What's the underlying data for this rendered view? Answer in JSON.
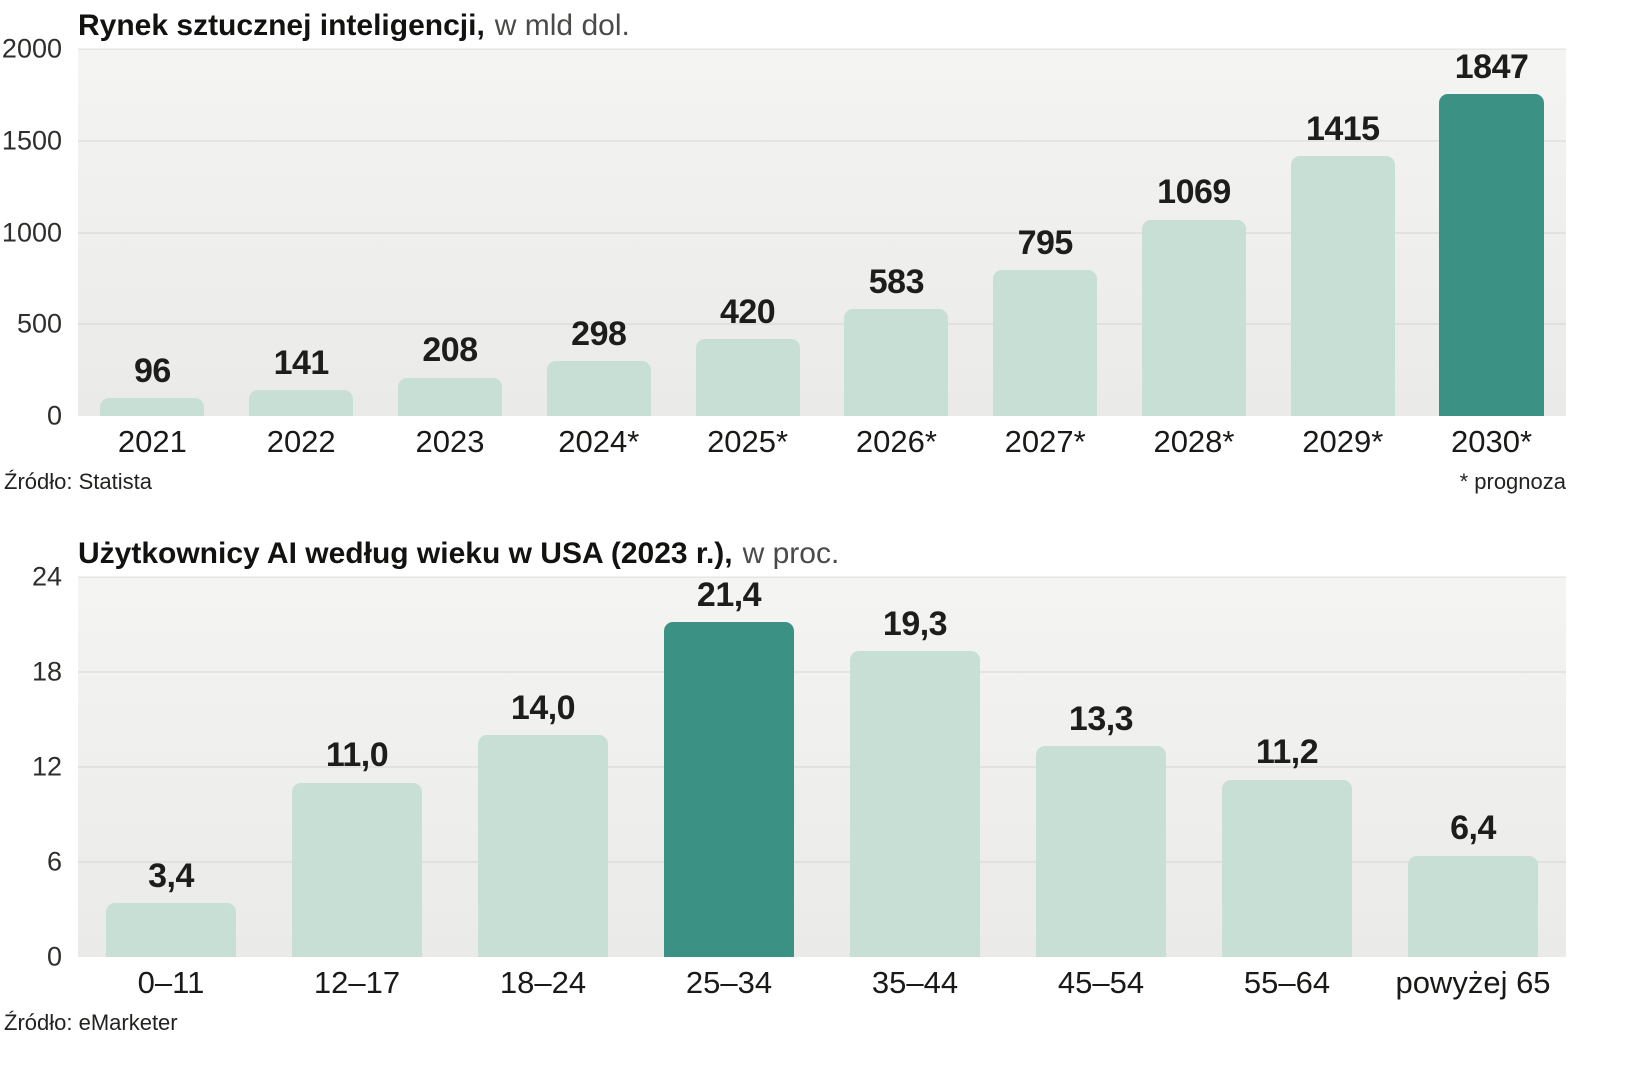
{
  "page": {
    "background": "#ffffff"
  },
  "chart_data": [
    {
      "type": "bar",
      "title_bold": "Rynek sztucznej inteligencji,",
      "title_light": "w mld dol.",
      "source": "Źródło: Statista",
      "footnote": "* prognoza",
      "categories": [
        "2021",
        "2022",
        "2023",
        "2024*",
        "2025*",
        "2026*",
        "2027*",
        "2028*",
        "2029*",
        "2030*"
      ],
      "values": [
        96,
        141,
        208,
        298,
        420,
        583,
        795,
        1069,
        1415,
        1847
      ],
      "value_labels": [
        "96",
        "141",
        "208",
        "298",
        "420",
        "583",
        "795",
        "1069",
        "1415",
        "1847"
      ],
      "highlight_index": 9,
      "ylim": [
        0,
        2000
      ],
      "yticks": [
        0,
        500,
        1000,
        1500,
        2000
      ],
      "ytick_labels": [
        "0",
        "500",
        "1000",
        "1500",
        "2000"
      ],
      "bar_color": "#c8dfd5",
      "highlight_color": "#3a9184",
      "grid": true,
      "legend": "none"
    },
    {
      "type": "bar",
      "title_bold": "Użytkownicy AI według wieku w USA (2023 r.),",
      "title_light": "w proc.",
      "source": "Źródło: eMarketer",
      "footnote": "",
      "categories": [
        "0–11",
        "12–17",
        "18–24",
        "25–34",
        "35–44",
        "45–54",
        "55–64",
        "powyżej 65"
      ],
      "values": [
        3.4,
        11.0,
        14.0,
        21.4,
        19.3,
        13.3,
        11.2,
        6.4
      ],
      "value_labels": [
        "3,4",
        "11,0",
        "14,0",
        "21,4",
        "19,3",
        "13,3",
        "11,2",
        "6,4"
      ],
      "highlight_index": 3,
      "ylim": [
        0,
        24
      ],
      "yticks": [
        0,
        6,
        12,
        18,
        24
      ],
      "ytick_labels": [
        "0",
        "6",
        "12",
        "18",
        "24"
      ],
      "bar_color": "#c8dfd5",
      "highlight_color": "#3a9184",
      "grid": true,
      "legend": "none"
    }
  ]
}
